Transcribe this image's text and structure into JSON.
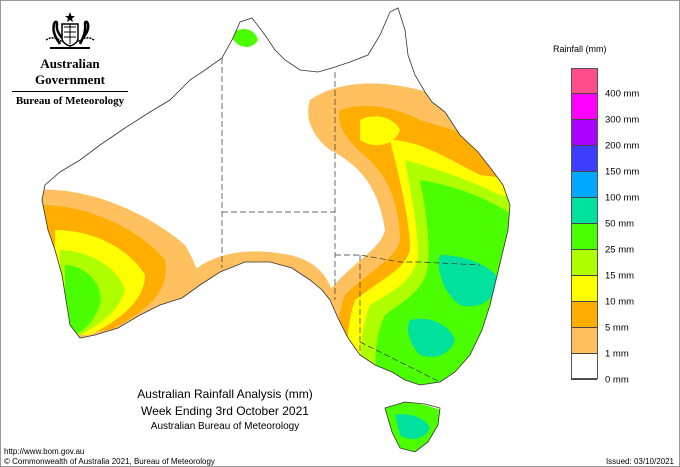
{
  "header": {
    "org_name": "Australian Government",
    "agency": "Bureau of Meteorology"
  },
  "map": {
    "title": "Australian Rainfall Analysis (mm)",
    "subtitle": "Week Ending 3rd October 2021",
    "source": "Australian Bureau of Meteorology"
  },
  "legend": {
    "title": "Rainfall (mm)",
    "colors": [
      "#ff4d8c",
      "#ff00ff",
      "#aa00ff",
      "#3d3dff",
      "#00a8ff",
      "#00e19e",
      "#4cff00",
      "#b0ff00",
      "#ffff00",
      "#ffae00",
      "#ffc060",
      "#ffffff"
    ],
    "labels": [
      "400 mm",
      "300 mm",
      "200 mm",
      "150 mm",
      "100 mm",
      "50 mm",
      "25 mm",
      "15 mm",
      "10 mm",
      "5 mm",
      "1 mm",
      "0 mm"
    ]
  },
  "footer": {
    "url": "http://www.bom.gov.au",
    "copyright": "© Commonwealth of Australia 2021, Bureau of Meteorology",
    "issued": "Issued: 03/10/2021"
  }
}
